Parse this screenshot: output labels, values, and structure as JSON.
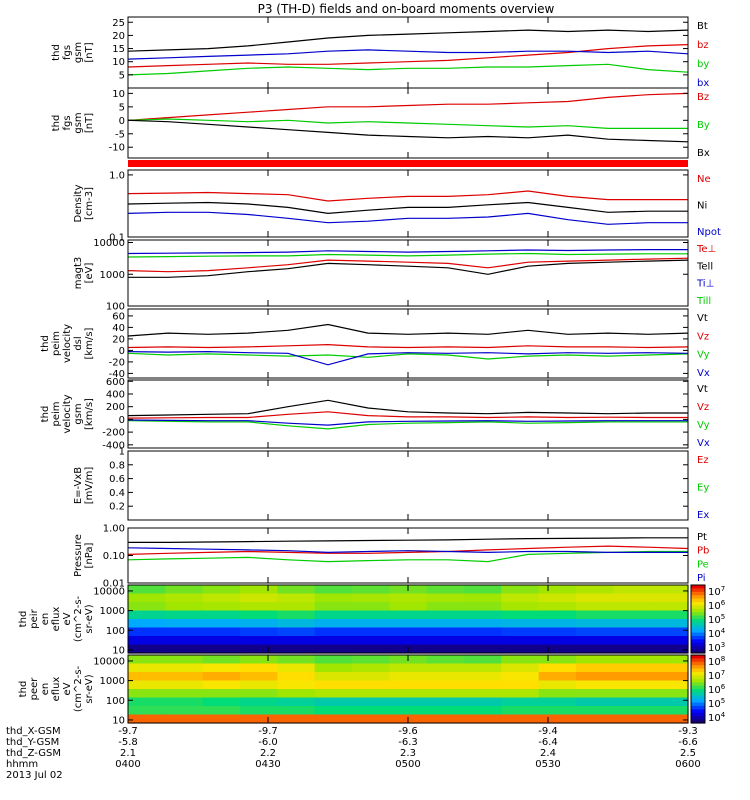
{
  "title": "P3 (TH-D) fields and on-board moments overview",
  "chart_data": [
    {
      "type": "line",
      "ylabel": [
        "thd",
        "fgs",
        "gsm",
        "[nT]"
      ],
      "ylim": [
        0,
        27
      ],
      "yticks": [
        5,
        10,
        15,
        20,
        25
      ],
      "series": [
        {
          "name": "Bt",
          "color": "#000000",
          "values": [
            14,
            14.5,
            15,
            16,
            17.5,
            19,
            20,
            20.5,
            21,
            21.5,
            22,
            21.5,
            22,
            21.5,
            22
          ]
        },
        {
          "name": "bz",
          "color": "#dd0000",
          "values": [
            8,
            8.5,
            9,
            9.5,
            9,
            9,
            9.5,
            10,
            10.5,
            11.5,
            12.5,
            13.5,
            15,
            16,
            16.5
          ]
        },
        {
          "name": "by",
          "color": "#00cc00",
          "values": [
            5,
            5.5,
            6.5,
            7.5,
            8,
            7.5,
            7,
            7.5,
            7.5,
            8,
            8,
            8.5,
            9,
            7,
            6
          ]
        },
        {
          "name": "bx",
          "color": "#0000cc",
          "values": [
            11,
            11.5,
            12,
            12.5,
            13,
            14,
            14.5,
            14,
            13.5,
            13.5,
            14,
            14,
            13.5,
            14,
            13
          ]
        }
      ]
    },
    {
      "type": "line",
      "ylabel": [
        "thd",
        "fgs",
        "gsm",
        "[nT]"
      ],
      "ylim": [
        -14,
        12
      ],
      "yticks": [
        -10,
        -5,
        0,
        5,
        10
      ],
      "series": [
        {
          "name": "Bz",
          "color": "#dd0000",
          "values": [
            0,
            1,
            2,
            3,
            4,
            5,
            5,
            5.5,
            6,
            6,
            6.5,
            7,
            8.5,
            9.5,
            10
          ]
        },
        {
          "name": "By",
          "color": "#00cc00",
          "values": [
            0,
            0.5,
            0,
            -0.5,
            0,
            -1,
            -0.5,
            -1,
            -1.5,
            -2,
            -2.5,
            -2,
            -3,
            -3,
            -3
          ]
        },
        {
          "name": "Bx",
          "color": "#000000",
          "values": [
            0,
            -0.5,
            -1.5,
            -2.5,
            -3.5,
            -4.5,
            -5.5,
            -6,
            -6.5,
            -6,
            -6.5,
            -5.5,
            -7,
            -7.5,
            -8
          ]
        }
      ]
    },
    {
      "type": "line",
      "ylabel": [
        "Density",
        "[cm-3]"
      ],
      "log": true,
      "ylim": [
        0.1,
        1.2
      ],
      "yticks": [
        0.1,
        1.0
      ],
      "yticklabels": [
        "0.1",
        "1.0"
      ],
      "series": [
        {
          "name": "Ne",
          "color": "#dd0000",
          "values": [
            0.5,
            0.51,
            0.52,
            0.5,
            0.48,
            0.38,
            0.42,
            0.45,
            0.45,
            0.48,
            0.55,
            0.45,
            0.4,
            0.4,
            0.4
          ]
        },
        {
          "name": "Ni",
          "color": "#000000",
          "values": [
            0.34,
            0.35,
            0.36,
            0.34,
            0.3,
            0.24,
            0.27,
            0.3,
            0.3,
            0.33,
            0.36,
            0.3,
            0.25,
            0.26,
            0.26
          ]
        },
        {
          "name": "Npot",
          "color": "#0000cc",
          "values": [
            0.24,
            0.25,
            0.25,
            0.23,
            0.2,
            0.17,
            0.18,
            0.2,
            0.2,
            0.21,
            0.24,
            0.19,
            0.16,
            0.17,
            0.17
          ]
        }
      ]
    },
    {
      "type": "line",
      "ylabel": [
        "magt3",
        "[eV]"
      ],
      "log": true,
      "ylim": [
        100,
        12000
      ],
      "yticks": [
        100,
        1000,
        10000
      ],
      "series": [
        {
          "name": "Te⊥",
          "color": "#dd0000",
          "values": [
            1300,
            1200,
            1300,
            1600,
            2000,
            2800,
            2600,
            2400,
            2200,
            1600,
            2400,
            2600,
            2800,
            3000,
            3200
          ]
        },
        {
          "name": "Tell",
          "color": "#000000",
          "values": [
            800,
            800,
            900,
            1200,
            1500,
            2200,
            2000,
            1800,
            1600,
            1000,
            1800,
            2200,
            2400,
            2600,
            2800
          ]
        },
        {
          "name": "Ti⊥",
          "color": "#0000cc",
          "values": [
            4500,
            4600,
            4700,
            4800,
            5000,
            5500,
            5200,
            5000,
            5200,
            5500,
            5800,
            5600,
            5800,
            6000,
            6000
          ]
        },
        {
          "name": "Till",
          "color": "#00cc00",
          "values": [
            3500,
            3600,
            3700,
            3800,
            3800,
            4200,
            4000,
            3800,
            4000,
            4300,
            4500,
            4200,
            4300,
            4400,
            4400
          ]
        }
      ]
    },
    {
      "type": "line",
      "ylabel": [
        "thd",
        "peim",
        "velocity",
        "dsl",
        "[km/s]"
      ],
      "ylim": [
        -48,
        72
      ],
      "yticks": [
        -40,
        -20,
        0,
        20,
        40,
        60
      ],
      "series": [
        {
          "name": "Vt",
          "color": "#000000",
          "values": [
            25,
            30,
            28,
            30,
            35,
            45,
            30,
            28,
            30,
            28,
            35,
            28,
            30,
            28,
            30
          ]
        },
        {
          "name": "Vz",
          "color": "#dd0000",
          "values": [
            5,
            6,
            5,
            6,
            8,
            10,
            6,
            5,
            6,
            5,
            8,
            6,
            6,
            5,
            6
          ]
        },
        {
          "name": "Vy",
          "color": "#00cc00",
          "values": [
            -5,
            -8,
            -6,
            -8,
            -10,
            -8,
            -12,
            -6,
            -8,
            -15,
            -10,
            -8,
            -10,
            -8,
            -6
          ]
        },
        {
          "name": "Vx",
          "color": "#0000cc",
          "values": [
            -2,
            -3,
            -2,
            -4,
            -5,
            -25,
            -6,
            -4,
            -5,
            -4,
            -6,
            -4,
            -5,
            -4,
            -5
          ]
        }
      ]
    },
    {
      "type": "line",
      "ylabel": [
        "thd",
        "peim",
        "velocity",
        "gsm",
        "[km/s]"
      ],
      "ylim": [
        -450,
        620
      ],
      "yticks": [
        -400,
        -200,
        0,
        200,
        400,
        600
      ],
      "series": [
        {
          "name": "Vt",
          "color": "#000000",
          "values": [
            60,
            70,
            80,
            90,
            200,
            300,
            180,
            120,
            100,
            90,
            110,
            100,
            90,
            100,
            100
          ]
        },
        {
          "name": "Vz",
          "color": "#dd0000",
          "values": [
            20,
            25,
            30,
            30,
            80,
            120,
            60,
            40,
            40,
            30,
            40,
            30,
            35,
            30,
            30
          ]
        },
        {
          "name": "Vy",
          "color": "#00cc00",
          "values": [
            -20,
            -30,
            -40,
            -40,
            -100,
            -150,
            -80,
            -60,
            -50,
            -40,
            -60,
            -50,
            -40,
            -40,
            -40
          ]
        },
        {
          "name": "Vx",
          "color": "#0000cc",
          "values": [
            -10,
            -15,
            -20,
            -20,
            -60,
            -90,
            -40,
            -30,
            -25,
            -20,
            -30,
            -25,
            -20,
            -20,
            -20
          ]
        }
      ]
    },
    {
      "type": "line",
      "ylabel": [
        "E=-VxB",
        "[mV/m]"
      ],
      "ylim": [
        0,
        1.0
      ],
      "yticks": [
        0.2,
        0.4,
        0.6,
        0.8,
        1.0
      ],
      "series": [
        {
          "name": "Ez",
          "color": "#dd0000",
          "values": []
        },
        {
          "name": "Ey",
          "color": "#00cc00",
          "values": []
        },
        {
          "name": "Ex",
          "color": "#0000cc",
          "values": []
        }
      ]
    },
    {
      "type": "line",
      "ylabel": [
        "Pressure",
        "[nPa]"
      ],
      "log": true,
      "ylim": [
        0.01,
        1.0
      ],
      "yticks": [
        0.01,
        0.1,
        1.0
      ],
      "yticklabels": [
        "0.01",
        "0.10",
        "1.00"
      ],
      "series": [
        {
          "name": "Pt",
          "color": "#000000",
          "values": [
            0.3,
            0.3,
            0.31,
            0.32,
            0.33,
            0.34,
            0.35,
            0.36,
            0.37,
            0.39,
            0.41,
            0.42,
            0.43,
            0.44,
            0.44
          ]
        },
        {
          "name": "Pb",
          "color": "#dd0000",
          "values": [
            0.11,
            0.12,
            0.13,
            0.14,
            0.13,
            0.12,
            0.12,
            0.13,
            0.14,
            0.16,
            0.18,
            0.2,
            0.22,
            0.2,
            0.18
          ]
        },
        {
          "name": "Pe",
          "color": "#00cc00",
          "values": [
            0.07,
            0.075,
            0.08,
            0.085,
            0.07,
            0.06,
            0.065,
            0.07,
            0.07,
            0.06,
            0.11,
            0.12,
            0.13,
            0.14,
            0.14
          ]
        },
        {
          "name": "Pi",
          "color": "#0000cc",
          "values": [
            0.19,
            0.18,
            0.17,
            0.16,
            0.15,
            0.13,
            0.14,
            0.15,
            0.14,
            0.13,
            0.14,
            0.14,
            0.13,
            0.13,
            0.13
          ]
        }
      ]
    },
    {
      "type": "heatmap",
      "ylabel": [
        "thd",
        "peir",
        "en",
        "eflux",
        "eV",
        "(cm^2-s-",
        "sr-eV)"
      ],
      "log": true,
      "ylim": [
        7,
        20000
      ],
      "yticks": [
        10,
        100,
        1000,
        10000
      ],
      "colorbar": {
        "ticks": [
          "10^3",
          "10^4",
          "10^5",
          "10^6",
          "10^7"
        ]
      },
      "rows": [
        [
          0.55,
          0.58,
          0.6,
          0.62,
          0.58,
          0.55,
          0.56,
          0.58,
          0.56,
          0.55,
          0.6,
          0.62,
          0.64,
          0.66,
          0.66
        ],
        [
          0.62,
          0.64,
          0.66,
          0.68,
          0.66,
          0.62,
          0.63,
          0.64,
          0.63,
          0.62,
          0.66,
          0.68,
          0.7,
          0.7,
          0.7
        ],
        [
          0.6,
          0.62,
          0.63,
          0.64,
          0.64,
          0.6,
          0.6,
          0.62,
          0.6,
          0.6,
          0.63,
          0.64,
          0.66,
          0.66,
          0.66
        ],
        [
          0.45,
          0.46,
          0.46,
          0.48,
          0.5,
          0.46,
          0.46,
          0.46,
          0.46,
          0.46,
          0.48,
          0.48,
          0.5,
          0.5,
          0.5
        ],
        [
          0.32,
          0.33,
          0.33,
          0.34,
          0.36,
          0.34,
          0.34,
          0.34,
          0.34,
          0.34,
          0.35,
          0.35,
          0.36,
          0.36,
          0.36
        ],
        [
          0.2,
          0.2,
          0.2,
          0.21,
          0.22,
          0.2,
          0.2,
          0.2,
          0.2,
          0.2,
          0.21,
          0.21,
          0.22,
          0.22,
          0.22
        ],
        [
          0.12,
          0.12,
          0.12,
          0.12,
          0.12,
          0.12,
          0.12,
          0.12,
          0.12,
          0.12,
          0.12,
          0.12,
          0.12,
          0.12,
          0.12
        ],
        [
          0.02,
          0.02,
          0.02,
          0.02,
          0.02,
          0.02,
          0.02,
          0.02,
          0.02,
          0.02,
          0.02,
          0.02,
          0.02,
          0.02,
          0.02
        ]
      ]
    },
    {
      "type": "heatmap",
      "ylabel": [
        "thd",
        "peer",
        "en",
        "eflux",
        "eV",
        "(cm^2-s-",
        "sr-eV)"
      ],
      "log": true,
      "ylim": [
        7,
        20000
      ],
      "yticks": [
        10,
        100,
        1000,
        10000
      ],
      "colorbar": {
        "ticks": [
          "10^4",
          "10^5",
          "10^6",
          "10^7",
          "10^8"
        ]
      },
      "rows": [
        [
          0.6,
          0.6,
          0.58,
          0.6,
          0.58,
          0.55,
          0.56,
          0.58,
          0.56,
          0.55,
          0.6,
          0.6,
          0.62,
          0.62,
          0.62
        ],
        [
          0.72,
          0.72,
          0.74,
          0.76,
          0.72,
          0.62,
          0.64,
          0.66,
          0.66,
          0.66,
          0.7,
          0.76,
          0.78,
          0.78,
          0.78
        ],
        [
          0.8,
          0.8,
          0.82,
          0.8,
          0.76,
          0.7,
          0.7,
          0.72,
          0.72,
          0.72,
          0.74,
          0.82,
          0.84,
          0.84,
          0.84
        ],
        [
          0.72,
          0.72,
          0.74,
          0.72,
          0.74,
          0.76,
          0.76,
          0.76,
          0.76,
          0.76,
          0.76,
          0.72,
          0.74,
          0.74,
          0.74
        ],
        [
          0.6,
          0.6,
          0.6,
          0.6,
          0.62,
          0.64,
          0.64,
          0.64,
          0.64,
          0.64,
          0.64,
          0.6,
          0.6,
          0.6,
          0.6
        ],
        [
          0.5,
          0.5,
          0.48,
          0.46,
          0.44,
          0.42,
          0.42,
          0.42,
          0.42,
          0.42,
          0.44,
          0.44,
          0.42,
          0.42,
          0.42
        ],
        [
          0.52,
          0.52,
          0.52,
          0.5,
          0.5,
          0.48,
          0.48,
          0.48,
          0.48,
          0.48,
          0.5,
          0.5,
          0.5,
          0.5,
          0.5
        ],
        [
          0.9,
          0.9,
          0.9,
          0.9,
          0.9,
          0.9,
          0.9,
          0.9,
          0.9,
          0.9,
          0.9,
          0.9,
          0.9,
          0.9,
          0.9
        ]
      ]
    }
  ],
  "xaxis": {
    "row_labels": [
      "thd_X-GSM",
      "thd_Y-GSM",
      "thd_Z-GSM",
      "hhmm",
      "2013 Jul 02"
    ],
    "ticks": [
      {
        "x": "-9.7",
        "y": "-5.8",
        "z": "2.1",
        "hhmm": "0400"
      },
      {
        "x": "-9.7",
        "y": "-6.0",
        "z": "2.2",
        "hhmm": "0430"
      },
      {
        "x": "-9.6",
        "y": "-6.3",
        "z": "2.3",
        "hhmm": "0500"
      },
      {
        "x": "-9.4",
        "y": "-6.4",
        "z": "2.4",
        "hhmm": "0530"
      },
      {
        "x": "-9.3",
        "y": "-6.6",
        "z": "2.5",
        "hhmm": "0600"
      }
    ]
  }
}
